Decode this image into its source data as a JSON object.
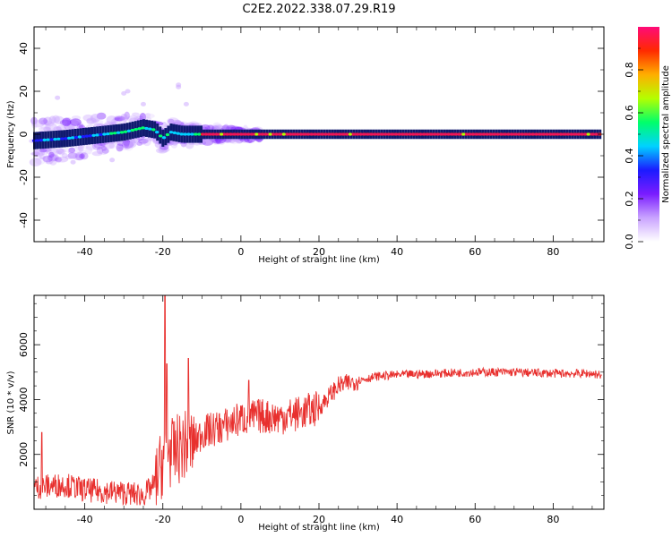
{
  "title": "C2E2.2022.338.07.29.R19",
  "colors": {
    "snr_line": "#e8302e",
    "ridge": "#f0145a",
    "spectrum_stops": [
      "#ffffff",
      "#c9a3ff",
      "#7a1cff",
      "#1b1bff",
      "#00d2ff",
      "#00ff6a",
      "#b4ff00",
      "#ffae00",
      "#ff2a00",
      "#ff0a78"
    ]
  },
  "chart_data": [
    {
      "type": "heatmap",
      "xlabel": "Height of straight line (km)",
      "ylabel": "Frequency (Hz)",
      "xlim": [
        -53,
        93
      ],
      "ylim": [
        -50,
        50
      ],
      "xticks": [
        -40,
        -20,
        0,
        20,
        40,
        60,
        80
      ],
      "yticks": [
        -40,
        -20,
        0,
        20,
        40
      ],
      "colorbar": {
        "label": "Normalized spectral amplitude",
        "range": [
          0,
          1
        ],
        "ticks": [
          "0.0",
          "0.2",
          "0.4",
          "0.6",
          "0.8"
        ]
      },
      "ridge": {
        "x": [
          -53,
          -45,
          -40,
          -35,
          -30,
          -25,
          -22,
          -20,
          -18,
          -15,
          -10,
          -5,
          0,
          10,
          20,
          40,
          60,
          80,
          92
        ],
        "y": [
          -3,
          -2,
          -1,
          0,
          1,
          3,
          2,
          -2,
          1,
          0,
          0,
          0,
          0,
          0,
          0,
          0,
          0,
          0,
          0
        ]
      }
    },
    {
      "type": "line",
      "xlabel": "Height of straight line (km)",
      "ylabel": "SNR (10 * v/v)",
      "xlim": [
        -53,
        93
      ],
      "ylim": [
        0,
        7800
      ],
      "xticks": [
        -40,
        -20,
        0,
        20,
        40,
        60,
        80
      ],
      "yticks": [
        2000,
        4000,
        6000
      ],
      "series": [
        {
          "x": [
            -53,
            -45,
            -40,
            -35,
            -30,
            -25,
            -22,
            -20,
            -19,
            -18,
            -15,
            -12,
            -10,
            -5,
            0,
            5,
            10,
            15,
            20,
            23,
            25,
            30,
            35,
            40,
            50,
            60,
            70,
            80,
            90,
            92
          ],
          "y": [
            800,
            900,
            700,
            650,
            600,
            500,
            900,
            1800,
            2500,
            2000,
            2300,
            2400,
            2800,
            3000,
            3300,
            3400,
            3350,
            3500,
            3700,
            4200,
            4500,
            4700,
            4850,
            4900,
            4950,
            5000,
            5000,
            4950,
            4950,
            4900
          ],
          "spikes": [
            {
              "x": -19.5,
              "y": 7800
            },
            {
              "x": -19.0,
              "y": 5300
            },
            {
              "x": -13.5,
              "y": 5500
            },
            {
              "x": -51.0,
              "y": 2800
            },
            {
              "x": 2.0,
              "y": 4700
            }
          ]
        }
      ]
    }
  ]
}
